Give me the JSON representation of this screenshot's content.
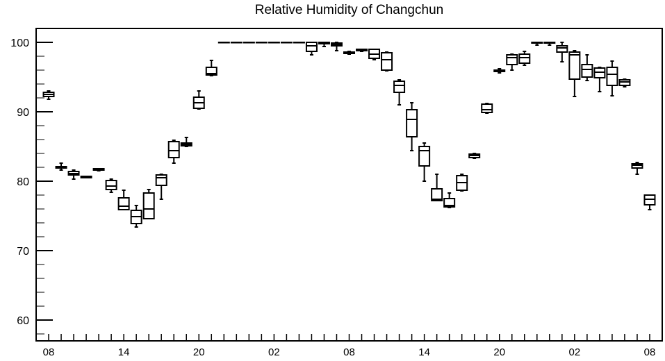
{
  "chart_data": {
    "type": "boxplot",
    "title": "Relative Humidity of Changchun",
    "xlabel": "",
    "ylabel": "",
    "ylim": [
      57,
      102
    ],
    "grid": false,
    "y_ticks": [
      60,
      70,
      80,
      90,
      100
    ],
    "x_ticks": [
      "08",
      "14",
      "20",
      "02",
      "08",
      "14",
      "20",
      "02",
      "08"
    ],
    "x_tick_positions": [
      0,
      6,
      12,
      18,
      24,
      30,
      36,
      42,
      48
    ],
    "xlim": [
      -1,
      49
    ],
    "boxes": [
      {
        "x": 0,
        "min": 91.8,
        "q1": 92.2,
        "median": 92.5,
        "q3": 92.8,
        "max": 93.0
      },
      {
        "x": 1,
        "min": 81.6,
        "q1": 81.9,
        "median": 82.0,
        "q3": 82.1,
        "max": 82.6
      },
      {
        "x": 2,
        "min": 80.3,
        "q1": 80.9,
        "median": 81.1,
        "q3": 81.4,
        "max": 81.6
      },
      {
        "x": 3,
        "min": 80.5,
        "q1": 80.5,
        "median": 80.6,
        "q3": 80.7,
        "max": 80.7
      },
      {
        "x": 4,
        "min": 81.5,
        "q1": 81.6,
        "median": 81.6,
        "q3": 81.8,
        "max": 81.8
      },
      {
        "x": 5,
        "min": 78.4,
        "q1": 78.8,
        "median": 79.3,
        "q3": 80.1,
        "max": 80.3
      },
      {
        "x": 6,
        "min": 75.9,
        "q1": 75.9,
        "median": 76.4,
        "q3": 77.6,
        "max": 78.7
      },
      {
        "x": 7,
        "min": 73.4,
        "q1": 73.9,
        "median": 74.9,
        "q3": 75.8,
        "max": 76.5
      },
      {
        "x": 8,
        "min": 74.6,
        "q1": 74.6,
        "median": 76.0,
        "q3": 78.3,
        "max": 78.8
      },
      {
        "x": 9,
        "min": 77.4,
        "q1": 79.4,
        "median": 80.5,
        "q3": 80.9,
        "max": 81.0
      },
      {
        "x": 10,
        "min": 82.6,
        "q1": 83.4,
        "median": 84.4,
        "q3": 85.7,
        "max": 85.9
      },
      {
        "x": 11,
        "min": 85.0,
        "q1": 85.1,
        "median": 85.3,
        "q3": 85.5,
        "max": 86.3
      },
      {
        "x": 12,
        "min": 90.4,
        "q1": 90.5,
        "median": 91.3,
        "q3": 92.1,
        "max": 93.0
      },
      {
        "x": 13,
        "min": 95.2,
        "q1": 95.3,
        "median": 95.5,
        "q3": 96.4,
        "max": 97.4
      },
      {
        "x": 14,
        "min": 100.0,
        "q1": 100.0,
        "median": 100.0,
        "q3": 100.0,
        "max": 100.0
      },
      {
        "x": 15,
        "min": 100.0,
        "q1": 100.0,
        "median": 100.0,
        "q3": 100.0,
        "max": 100.0
      },
      {
        "x": 16,
        "min": 100.0,
        "q1": 100.0,
        "median": 100.0,
        "q3": 100.0,
        "max": 100.0
      },
      {
        "x": 17,
        "min": 100.0,
        "q1": 100.0,
        "median": 100.0,
        "q3": 100.0,
        "max": 100.0
      },
      {
        "x": 18,
        "min": 100.0,
        "q1": 100.0,
        "median": 100.0,
        "q3": 100.0,
        "max": 100.0
      },
      {
        "x": 19,
        "min": 100.0,
        "q1": 100.0,
        "median": 100.0,
        "q3": 100.0,
        "max": 100.0
      },
      {
        "x": 20,
        "min": 100.0,
        "q1": 100.0,
        "median": 100.0,
        "q3": 100.0,
        "max": 100.0
      },
      {
        "x": 21,
        "min": 98.2,
        "q1": 98.7,
        "median": 99.5,
        "q3": 100.0,
        "max": 100.0
      },
      {
        "x": 22,
        "min": 99.4,
        "q1": 99.8,
        "median": 100.0,
        "q3": 100.0,
        "max": 100.0
      },
      {
        "x": 23,
        "min": 98.8,
        "q1": 99.5,
        "median": 99.7,
        "q3": 99.9,
        "max": 100.0
      },
      {
        "x": 24,
        "min": 98.3,
        "q1": 98.4,
        "median": 98.5,
        "q3": 98.6,
        "max": 98.7
      },
      {
        "x": 25,
        "min": 98.7,
        "q1": 98.8,
        "median": 98.9,
        "q3": 99.0,
        "max": 99.0
      },
      {
        "x": 26,
        "min": 97.5,
        "q1": 97.7,
        "median": 98.3,
        "q3": 99.0,
        "max": 99.0
      },
      {
        "x": 27,
        "min": 95.9,
        "q1": 96.0,
        "median": 97.5,
        "q3": 98.5,
        "max": 98.6
      },
      {
        "x": 28,
        "min": 91.0,
        "q1": 92.8,
        "median": 93.8,
        "q3": 94.4,
        "max": 94.6
      },
      {
        "x": 29,
        "min": 84.4,
        "q1": 86.4,
        "median": 88.9,
        "q3": 90.3,
        "max": 91.3
      },
      {
        "x": 30,
        "min": 80.0,
        "q1": 82.2,
        "median": 84.4,
        "q3": 85.0,
        "max": 85.5
      },
      {
        "x": 31,
        "min": 77.2,
        "q1": 77.2,
        "median": 77.4,
        "q3": 78.9,
        "max": 81.0
      },
      {
        "x": 32,
        "min": 76.2,
        "q1": 76.3,
        "median": 76.5,
        "q3": 77.5,
        "max": 78.3
      },
      {
        "x": 33,
        "min": 78.6,
        "q1": 78.7,
        "median": 79.8,
        "q3": 80.8,
        "max": 81.0
      },
      {
        "x": 34,
        "min": 83.3,
        "q1": 83.4,
        "median": 83.7,
        "q3": 83.9,
        "max": 84.0
      },
      {
        "x": 35,
        "min": 89.8,
        "q1": 89.9,
        "median": 90.3,
        "q3": 91.1,
        "max": 91.2
      },
      {
        "x": 36,
        "min": 95.6,
        "q1": 95.8,
        "median": 95.9,
        "q3": 96.0,
        "max": 96.2
      },
      {
        "x": 37,
        "min": 96.0,
        "q1": 96.8,
        "median": 97.8,
        "q3": 98.2,
        "max": 98.3
      },
      {
        "x": 38,
        "min": 96.7,
        "q1": 97.0,
        "median": 97.8,
        "q3": 98.3,
        "max": 98.7
      },
      {
        "x": 39,
        "min": 99.6,
        "q1": 99.9,
        "median": 100.0,
        "q3": 100.0,
        "max": 100.0
      },
      {
        "x": 40,
        "min": 99.6,
        "q1": 99.9,
        "median": 100.0,
        "q3": 100.0,
        "max": 100.0
      },
      {
        "x": 41,
        "min": 97.2,
        "q1": 98.6,
        "median": 99.2,
        "q3": 99.5,
        "max": 100.0
      },
      {
        "x": 42,
        "min": 92.2,
        "q1": 94.7,
        "median": 98.2,
        "q3": 98.6,
        "max": 98.8
      },
      {
        "x": 43,
        "min": 94.5,
        "q1": 95.0,
        "median": 96.1,
        "q3": 96.8,
        "max": 98.2
      },
      {
        "x": 44,
        "min": 92.9,
        "q1": 94.9,
        "median": 95.7,
        "q3": 96.3,
        "max": 96.4
      },
      {
        "x": 45,
        "min": 92.3,
        "q1": 93.8,
        "median": 95.4,
        "q3": 96.4,
        "max": 97.3
      },
      {
        "x": 46,
        "min": 93.6,
        "q1": 93.8,
        "median": 94.3,
        "q3": 94.6,
        "max": 94.7
      },
      {
        "x": 47,
        "min": 81.0,
        "q1": 81.9,
        "median": 82.3,
        "q3": 82.5,
        "max": 82.7
      },
      {
        "x": 48,
        "min": 75.9,
        "q1": 76.6,
        "median": 77.4,
        "q3": 78.0,
        "max": 78.0
      }
    ]
  }
}
